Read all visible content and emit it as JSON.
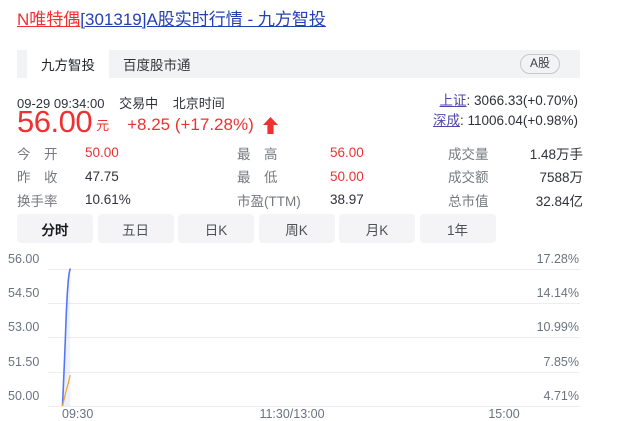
{
  "colors": {
    "up_red": "#ee3131",
    "link_blue": "#2440b3",
    "index_link_purple": "#4f43ad",
    "price_line_blue": "#5577f5",
    "avg_line_yellow": "#f4a42c",
    "grid_gray": "#ededf0"
  },
  "title": {
    "stock": "N唯特偶",
    "rest": "[301319]A股实时行情 - 九方智投"
  },
  "tabbar": {
    "tabs": [
      {
        "label": "九方智投",
        "active": true
      },
      {
        "label": "百度股市通",
        "active": false
      }
    ],
    "badge": "A股"
  },
  "status": {
    "datetime": "09-29 09:34:00",
    "state": "交易中",
    "tz": "北京时间"
  },
  "price": {
    "value": "56.00",
    "unit": "元",
    "change": "+8.25 (+17.28%)",
    "direction": "up"
  },
  "indices": [
    {
      "label": "上证",
      "value": "3066.33(+0.70%)"
    },
    {
      "label": "深成",
      "value": "11006.04(+0.98%)"
    }
  ],
  "stats": {
    "columns": [
      [
        {
          "label": "今　开",
          "value": "50.00",
          "red": true
        },
        {
          "label": "昨　收",
          "value": "47.75",
          "red": false
        },
        {
          "label": "换手率",
          "value": "10.61%",
          "red": false
        }
      ],
      [
        {
          "label": "最　高",
          "value": "56.00",
          "red": true
        },
        {
          "label": "最　低",
          "value": "50.00",
          "red": true
        },
        {
          "label": "市盈(TTM)",
          "value": "38.97",
          "red": false
        }
      ],
      [
        {
          "label": "成交量",
          "value": "1.48万手",
          "red": false
        },
        {
          "label": "成交额",
          "value": "7588万",
          "red": false
        },
        {
          "label": "总市值",
          "value": "32.84亿",
          "red": false
        }
      ]
    ]
  },
  "period_tabs": [
    {
      "label": "分时",
      "active": true
    },
    {
      "label": "五日",
      "active": false
    },
    {
      "label": "日K",
      "active": false
    },
    {
      "label": "周K",
      "active": false
    },
    {
      "label": "月K",
      "active": false
    },
    {
      "label": "1年",
      "active": false
    }
  ],
  "chart_data": {
    "type": "line",
    "title": "分时走势 (minute chart)",
    "prev_close": 47.75,
    "session_minutes": 240,
    "x_ticks": [
      "09:30",
      "11:30/13:00",
      "15:00"
    ],
    "y_ticks_price": [
      56.0,
      54.5,
      53.0,
      51.5,
      50.0
    ],
    "y_ticks_pct": [
      "17.28%",
      "14.14%",
      "10.99%",
      "7.85%",
      "4.71%"
    ],
    "ylim": [
      50.0,
      56.0
    ],
    "grid": true,
    "legend": false,
    "series": [
      {
        "name": "price",
        "color": "#5577f5",
        "x_minutes": [
          0,
          0.5,
          1,
          1.5,
          2,
          2.5,
          3,
          3.5,
          4
        ],
        "values": [
          50.0,
          51.0,
          51.9,
          53.0,
          54.05,
          54.9,
          55.5,
          55.8,
          56.0
        ]
      },
      {
        "name": "avg_price",
        "color": "#f4a42c",
        "x_minutes": [
          0,
          1,
          2,
          3,
          4
        ],
        "values": [
          50.0,
          50.35,
          50.7,
          51.0,
          51.35
        ]
      }
    ]
  }
}
